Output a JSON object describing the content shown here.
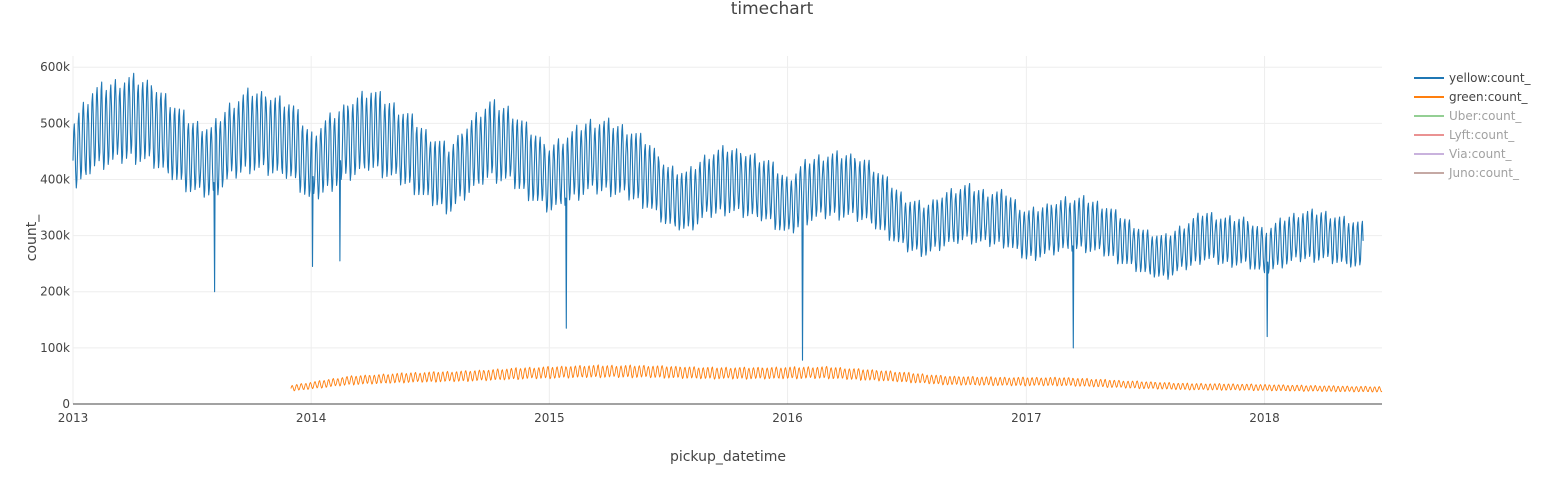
{
  "chart_data": {
    "type": "line",
    "title": "timechart",
    "xlabel": "pickup_datetime",
    "ylabel": "count_",
    "xlim": [
      "2013-01-01",
      "2018-06-30"
    ],
    "ylim": [
      0,
      620000
    ],
    "x_ticks": [
      {
        "date": "2013-01-01",
        "label": "2013"
      },
      {
        "date": "2014-01-01",
        "label": "2014"
      },
      {
        "date": "2015-01-01",
        "label": "2015"
      },
      {
        "date": "2016-01-01",
        "label": "2016"
      },
      {
        "date": "2017-01-01",
        "label": "2017"
      },
      {
        "date": "2018-01-01",
        "label": "2018"
      }
    ],
    "y_ticks": [
      {
        "value": 0,
        "label": "0"
      },
      {
        "value": 100000,
        "label": "100k"
      },
      {
        "value": 200000,
        "label": "200k"
      },
      {
        "value": 300000,
        "label": "300k"
      },
      {
        "value": 400000,
        "label": "400k"
      },
      {
        "value": 500000,
        "label": "500k"
      },
      {
        "value": 600000,
        "label": "600k"
      }
    ],
    "grid": true,
    "legend_position": "right",
    "series": [
      {
        "name": "yellow:count_",
        "color": "#1f77b4",
        "visible": true,
        "x": [
          "2013-01-01",
          "2013-02-01",
          "2013-03-01",
          "2013-04-01",
          "2013-05-01",
          "2013-06-01",
          "2013-07-01",
          "2013-08-01",
          "2013-09-01",
          "2013-10-01",
          "2013-11-01",
          "2013-12-01",
          "2014-01-01",
          "2014-02-01",
          "2014-03-01",
          "2014-04-01",
          "2014-05-01",
          "2014-06-01",
          "2014-07-01",
          "2014-08-01",
          "2014-09-01",
          "2014-10-01",
          "2014-11-01",
          "2014-12-01",
          "2015-01-01",
          "2015-02-01",
          "2015-03-01",
          "2015-04-01",
          "2015-05-01",
          "2015-06-01",
          "2015-07-01",
          "2015-08-01",
          "2015-09-01",
          "2015-10-01",
          "2015-11-01",
          "2015-12-01",
          "2016-01-01",
          "2016-02-01",
          "2016-03-01",
          "2016-04-01",
          "2016-05-01",
          "2016-06-01",
          "2016-07-01",
          "2016-08-01",
          "2016-09-01",
          "2016-10-01",
          "2016-11-01",
          "2016-12-01",
          "2017-01-01",
          "2017-02-01",
          "2017-03-01",
          "2017-04-01",
          "2017-05-01",
          "2017-06-01",
          "2017-07-01",
          "2017-08-01",
          "2017-09-01",
          "2017-10-01",
          "2017-11-01",
          "2017-12-01",
          "2018-01-01",
          "2018-02-01",
          "2018-03-01",
          "2018-04-01",
          "2018-05-01",
          "2018-06-01"
        ],
        "values": [
          440000,
          490000,
          500000,
          510000,
          500000,
          470000,
          440000,
          430000,
          470000,
          490000,
          480000,
          470000,
          420000,
          450000,
          470000,
          490000,
          470000,
          450000,
          420000,
          400000,
          440000,
          470000,
          460000,
          430000,
          400000,
          420000,
          440000,
          440000,
          430000,
          410000,
          370000,
          360000,
          390000,
          400000,
          390000,
          380000,
          350000,
          380000,
          390000,
          390000,
          380000,
          350000,
          320000,
          310000,
          330000,
          340000,
          330000,
          330000,
          300000,
          310000,
          320000,
          320000,
          310000,
          290000,
          270000,
          260000,
          280000,
          300000,
          290000,
          290000,
          270000,
          290000,
          300000,
          300000,
          290000,
          280000
        ],
        "dips": [
          {
            "date": "2013-08-06",
            "value": 200000
          },
          {
            "date": "2014-01-03",
            "value": 245000
          },
          {
            "date": "2014-02-14",
            "value": 255000
          },
          {
            "date": "2015-01-27",
            "value": 135000
          },
          {
            "date": "2016-01-24",
            "value": 78000
          },
          {
            "date": "2017-03-14",
            "value": 100000
          },
          {
            "date": "2018-01-05",
            "value": 120000
          }
        ]
      },
      {
        "name": "green:count_",
        "color": "#ff7f0e",
        "visible": true,
        "x": [
          "2013-12-01",
          "2014-03-01",
          "2014-06-01",
          "2014-09-01",
          "2014-12-01",
          "2015-03-01",
          "2015-06-01",
          "2015-09-01",
          "2015-12-01",
          "2016-03-01",
          "2016-06-01",
          "2016-09-01",
          "2016-12-01",
          "2017-03-01",
          "2017-06-01",
          "2017-09-01",
          "2017-12-01",
          "2018-03-01",
          "2018-06-30"
        ],
        "values": [
          28000,
          42000,
          47000,
          50000,
          55000,
          58000,
          58000,
          55000,
          55000,
          56000,
          50000,
          42000,
          40000,
          40000,
          35000,
          31000,
          30000,
          28000,
          26000
        ]
      },
      {
        "name": "Uber:count_",
        "color": "#2ca02c",
        "visible": false,
        "x": [],
        "values": []
      },
      {
        "name": "Lyft:count_",
        "color": "#d62728",
        "visible": false,
        "x": [],
        "values": []
      },
      {
        "name": "Via:count_",
        "color": "#9467bd",
        "visible": false,
        "x": [],
        "values": []
      },
      {
        "name": "Juno:count_",
        "color": "#8c564b",
        "visible": false,
        "x": [],
        "values": []
      }
    ]
  }
}
